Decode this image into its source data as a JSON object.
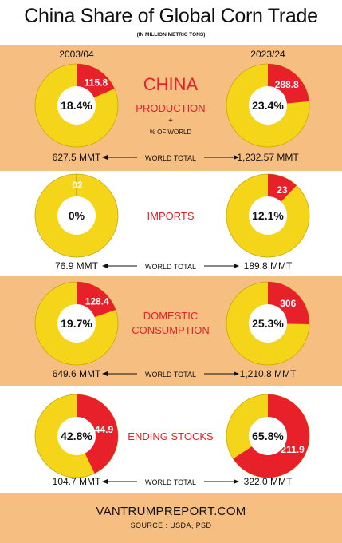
{
  "header": {
    "title": "China Share of Global Corn Trade",
    "subtitle": "(IN MILLION METRIC TONS)",
    "year_left": "2003/04",
    "year_right": "2023/24"
  },
  "colors": {
    "china": "#e8202a",
    "rest_of_world": "#f4d51a",
    "band": "#f7be82",
    "label_red": "#e8202a"
  },
  "footer": {
    "site": "VANTRUMPREPORT.COM",
    "source": "SOURCE : USDA, PSD"
  },
  "world_total_label": "WORLD TOTAL",
  "chart_data": [
    {
      "type": "pie",
      "metric": "PRODUCTION",
      "heading": "CHINA",
      "label_line2": "PRODUCTION",
      "label_line3": "+",
      "label_line4": "% OF WORLD",
      "left": {
        "china_value": "115.8",
        "share_pct": 18.4,
        "share_label": "18.4%",
        "world_total": "627.5 MMT"
      },
      "right": {
        "china_value": "288.8",
        "share_pct": 23.4,
        "share_label": "23.4%",
        "world_total": "1,232.57 MMT"
      }
    },
    {
      "type": "pie",
      "metric": "IMPORTS",
      "left": {
        "china_value": "02",
        "share_pct": 0,
        "share_label": "0%",
        "world_total": "76.9 MMT"
      },
      "right": {
        "china_value": "23",
        "share_pct": 12.1,
        "share_label": "12.1%",
        "world_total": "189.8 MMT"
      }
    },
    {
      "type": "pie",
      "metric": "DOMESTIC",
      "label_line2": "CONSUMPTION",
      "left": {
        "china_value": "128.4",
        "share_pct": 19.7,
        "share_label": "19.7%",
        "world_total": "649.6 MMT"
      },
      "right": {
        "china_value": "306",
        "share_pct": 25.3,
        "share_label": "25.3%",
        "world_total": "1,210.8 MMT"
      }
    },
    {
      "type": "pie",
      "metric": "ENDING STOCKS",
      "left": {
        "china_value": "44.9",
        "share_pct": 42.8,
        "share_label": "42.8%",
        "world_total": "104.7 MMT"
      },
      "right": {
        "china_value": "211.9",
        "share_pct": 65.8,
        "share_label": "65.8%",
        "world_total": "322.0 MMT"
      }
    }
  ]
}
